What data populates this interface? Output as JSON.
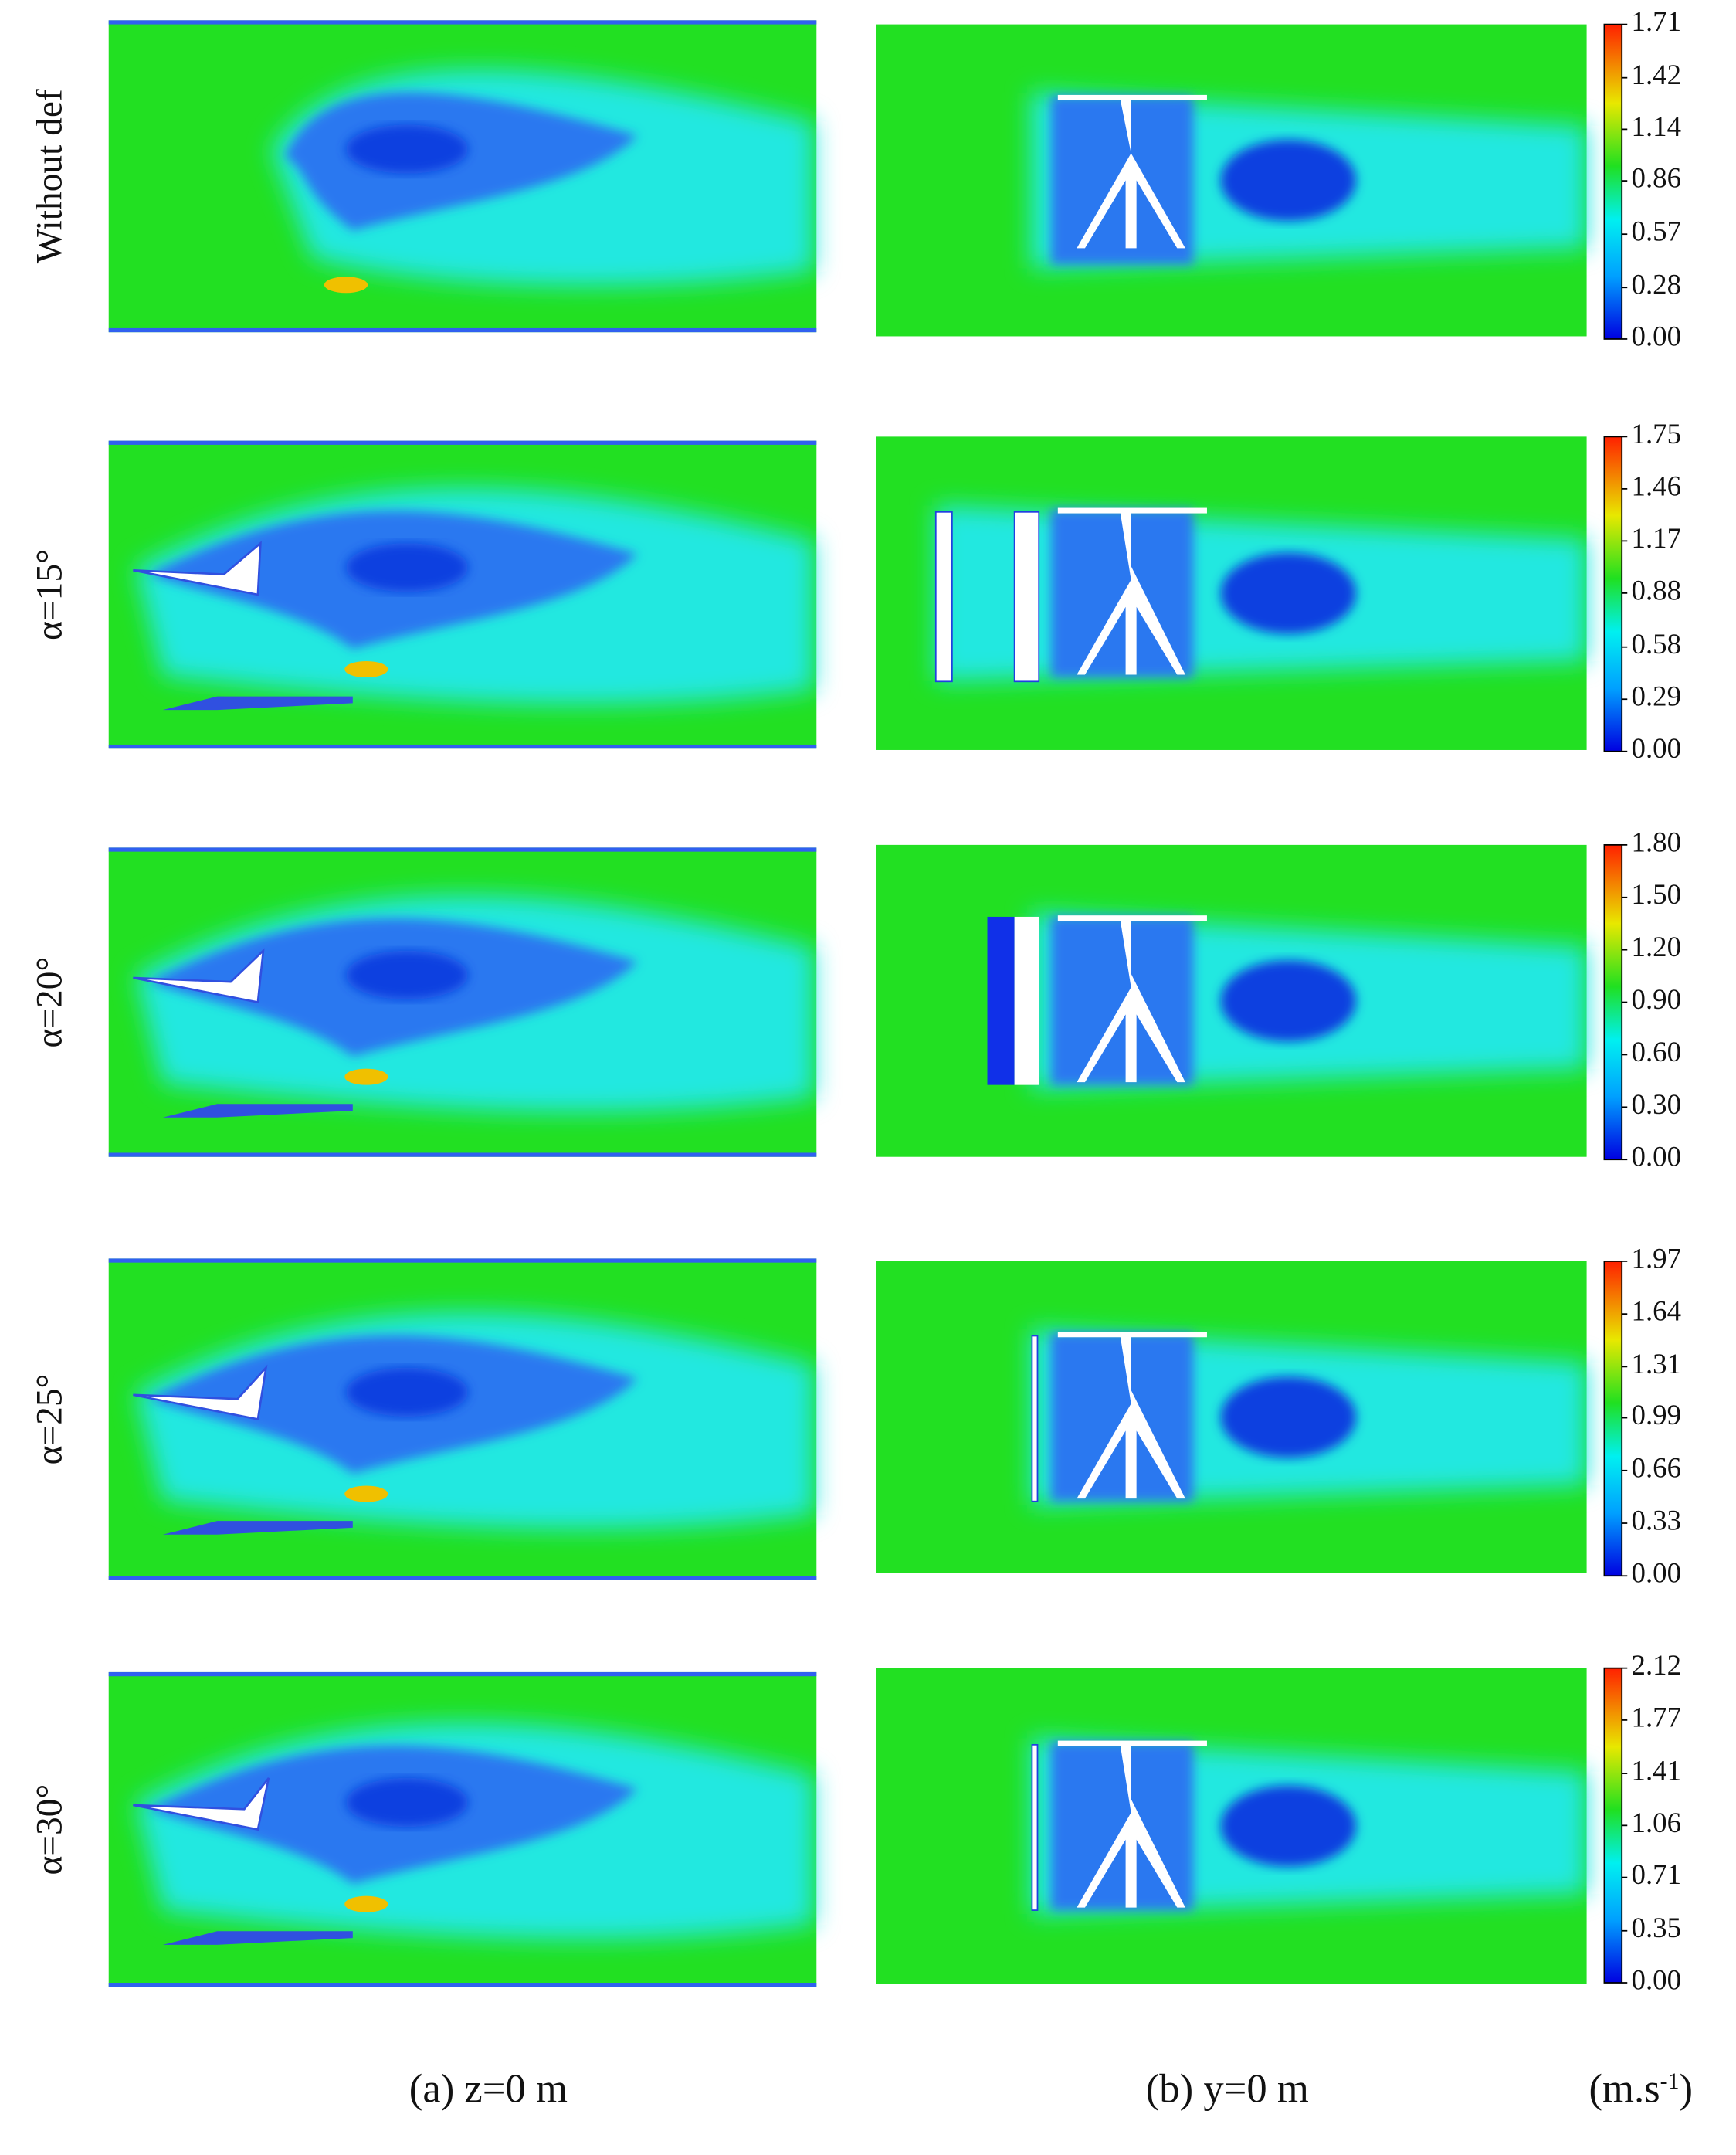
{
  "rows": [
    {
      "label": "Without def",
      "colorbar": {
        "lim": [
          0,
          1.71
        ],
        "ticks": [
          {
            "value": 0,
            "label": "0.00"
          },
          0.28,
          0.57,
          0.86,
          1.14,
          1.42,
          1.71
        ]
      }
    },
    {
      "label": "α=15°",
      "colorbar": {
        "lim": [
          0,
          1.75
        ],
        "ticks": [
          {
            "value": 0,
            "label": "0.00"
          },
          0.29,
          0.58,
          0.88,
          1.17,
          1.46,
          1.75
        ]
      }
    },
    {
      "label": "α=20°",
      "colorbar": {
        "lim": [
          0,
          1.8
        ],
        "ticks": [
          {
            "value": 0,
            "label": "0.00"
          },
          {
            "value": 0.3,
            "label": "0.30"
          },
          {
            "value": 0.6,
            "label": "0.60"
          },
          {
            "value": 0.9,
            "label": "0.90"
          },
          {
            "value": 1.2,
            "label": "1.20"
          },
          {
            "value": 1.5,
            "label": "1.50"
          },
          {
            "value": 1.8,
            "label": "1.80"
          }
        ]
      }
    },
    {
      "label": "α=25°",
      "colorbar": {
        "lim": [
          0,
          1.97
        ],
        "ticks": [
          {
            "value": 0,
            "label": "0.00"
          },
          0.33,
          0.66,
          0.99,
          1.31,
          1.64,
          1.97
        ]
      }
    },
    {
      "label": "α=30°",
      "colorbar": {
        "lim": [
          0,
          2.12
        ],
        "ticks": [
          {
            "value": 0,
            "label": "0.00"
          },
          0.35,
          0.71,
          1.06,
          1.41,
          1.77,
          2.12
        ]
      }
    }
  ],
  "captions": {
    "left": "(a)  z=0 m",
    "right": "(b)  y=0 m"
  },
  "unit": {
    "text": "(m.s",
    "sup": "-1",
    "close": ")"
  }
}
